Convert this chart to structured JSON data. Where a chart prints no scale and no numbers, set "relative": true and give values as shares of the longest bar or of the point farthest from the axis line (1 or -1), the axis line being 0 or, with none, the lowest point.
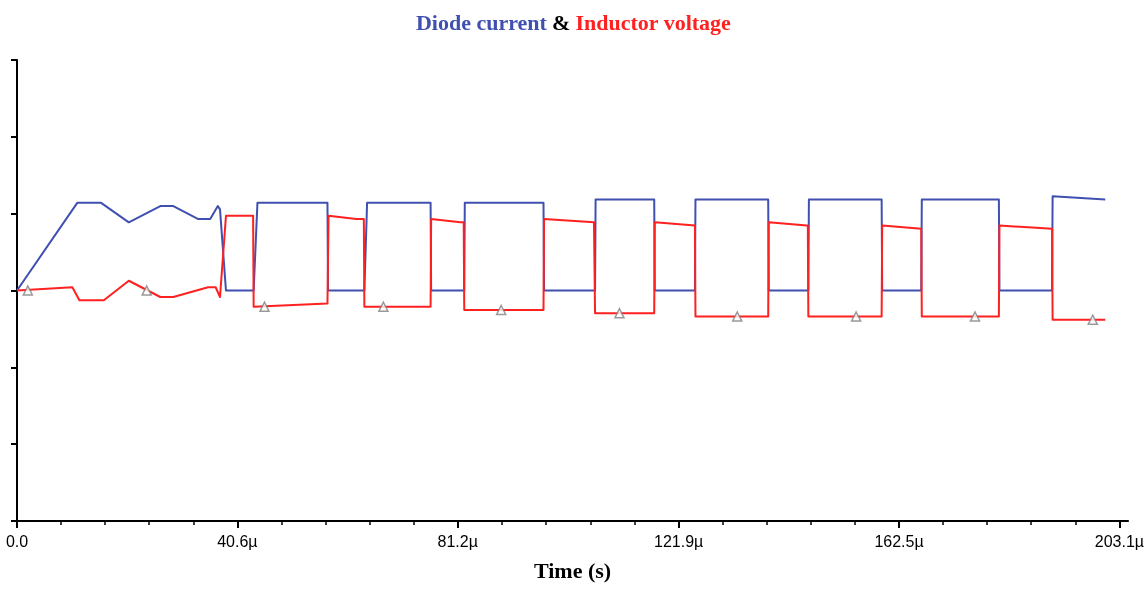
{
  "chart_data": {
    "type": "line",
    "title": "&",
    "xlabel": "Time (s)",
    "relative": true,
    "legend": false,
    "grid": false,
    "xlim": [
      0,
      204.7
    ],
    "xticks": [
      {
        "value": 0,
        "label": "0.0"
      },
      {
        "value": 40.6,
        "label": "40.6µ"
      },
      {
        "value": 81.2,
        "label": "81.2µ"
      },
      {
        "value": 121.9,
        "label": "121.9µ"
      },
      {
        "value": 162.5,
        "label": "162.5µ"
      },
      {
        "value": 203.1,
        "label": "203.1µ"
      }
    ],
    "series": [
      {
        "name": "Diode current",
        "color": "#4050b0",
        "x": [
          0,
          11.1,
          15.5,
          20.6,
          26.4,
          28.8,
          33.4,
          35.6,
          37.0,
          37.4,
          38.5,
          43.6,
          44.3,
          57.2,
          57.3,
          64.0,
          64.5,
          76.2,
          76.3,
          82.4,
          82.5,
          97.0,
          97.1,
          106.5,
          106.6,
          117.4,
          117.5,
          124.9,
          125.0,
          138.4,
          138.5,
          145.8,
          145.9,
          159.3,
          159.4,
          166.6,
          166.7,
          180.9,
          181.0,
          190.7,
          190.8,
          200.5
        ],
        "values": [
          0.71,
          0.98,
          0.98,
          0.92,
          0.97,
          0.97,
          0.93,
          0.93,
          0.97,
          0.96,
          0.71,
          0.71,
          0.98,
          0.98,
          0.71,
          0.71,
          0.98,
          0.98,
          0.71,
          0.71,
          0.98,
          0.98,
          0.71,
          0.71,
          0.99,
          0.99,
          0.71,
          0.71,
          0.99,
          0.99,
          0.71,
          0.71,
          0.99,
          0.99,
          0.71,
          0.71,
          0.99,
          0.99,
          0.71,
          0.71,
          1.0,
          0.99
        ]
      },
      {
        "name": "Inductor voltage",
        "color": "#ff2020",
        "x": [
          0,
          10.2,
          11.5,
          16.0,
          20.6,
          26.4,
          28.8,
          35.2,
          36.6,
          37.4,
          38.5,
          43.5,
          43.6,
          57.2,
          57.4,
          62.5,
          63.9,
          64.0,
          76.2,
          76.3,
          81.7,
          82.3,
          82.4,
          97.0,
          97.1,
          106.3,
          106.5,
          117.4,
          117.5,
          124.9,
          125.0,
          138.4,
          138.5,
          145.5,
          145.7,
          145.8,
          159.3,
          159.4,
          166.6,
          166.7,
          180.9,
          181.0,
          190.7,
          190.8,
          200.5
        ],
        "values": [
          0.71,
          0.72,
          0.68,
          0.68,
          0.74,
          0.69,
          0.69,
          0.72,
          0.72,
          0.69,
          0.94,
          0.94,
          0.66,
          0.67,
          0.94,
          0.93,
          0.93,
          0.66,
          0.66,
          0.93,
          0.92,
          0.92,
          0.65,
          0.65,
          0.93,
          0.92,
          0.64,
          0.64,
          0.92,
          0.91,
          0.63,
          0.63,
          0.92,
          0.91,
          0.91,
          0.63,
          0.63,
          0.91,
          0.9,
          0.63,
          0.63,
          0.91,
          0.9,
          0.62,
          0.62
        ]
      },
      {
        "type": "scatter",
        "marker": "triangle",
        "color": "#7f7f7f",
        "x": [
          2.0,
          23.9,
          45.6,
          67.5,
          89.2,
          111.0,
          132.7,
          154.6,
          176.5,
          198.2
        ],
        "values": [
          0.71,
          0.71,
          0.66,
          0.66,
          0.65,
          0.64,
          0.63,
          0.63,
          0.63,
          0.62
        ]
      }
    ]
  }
}
